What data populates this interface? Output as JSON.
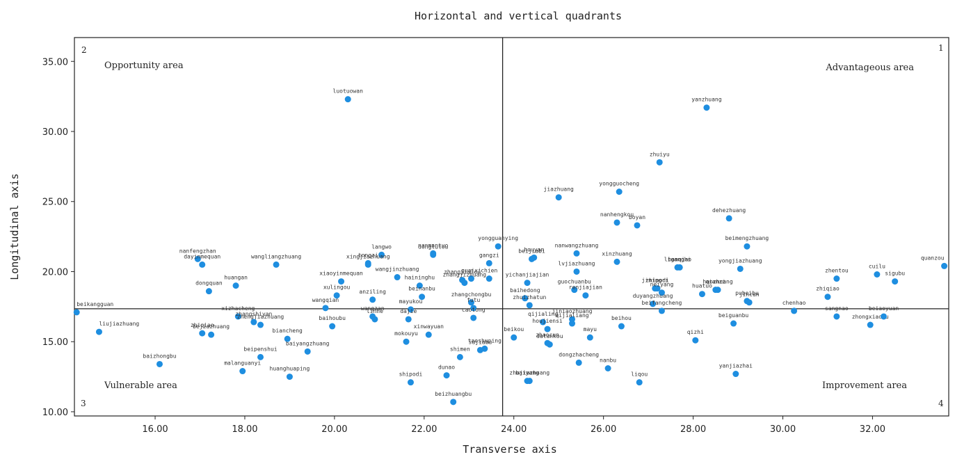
{
  "chart_data": {
    "type": "scatter",
    "title": "Horizontal and vertical quadrants",
    "xlabel": "Transverse axis",
    "ylabel": "Longitudinal axis",
    "xlim": [
      14.2,
      33.7
    ],
    "ylim": [
      9.7,
      36.7
    ],
    "x_ticks": [
      "16.00",
      "18.00",
      "20.00",
      "22.00",
      "24.00",
      "26.00",
      "28.00",
      "30.00",
      "32.00"
    ],
    "y_ticks": [
      "10.00",
      "15.00",
      "20.00",
      "25.00",
      "30.00",
      "35.00"
    ],
    "dividers": {
      "x": 23.75,
      "y": 17.35
    },
    "quadrants": [
      {
        "number": "1",
        "name": "Advantageous area"
      },
      {
        "number": "2",
        "name": "Opportunity area"
      },
      {
        "number": "3",
        "name": "Vulnerable area"
      },
      {
        "number": "4",
        "name": "Improvement area"
      }
    ],
    "color": "#1e8ee0",
    "grid": false,
    "points": [
      {
        "label": "luotuowan",
        "x": 20.3,
        "y": 32.3
      },
      {
        "label": "yanzhuang",
        "x": 28.3,
        "y": 31.7
      },
      {
        "label": "zhuiyu",
        "x": 27.25,
        "y": 27.8
      },
      {
        "label": "jiazhuang",
        "x": 25.0,
        "y": 25.3
      },
      {
        "label": "yongguocheng",
        "x": 26.35,
        "y": 25.7
      },
      {
        "label": "nanhengkou",
        "x": 26.3,
        "y": 23.5
      },
      {
        "label": "boyan",
        "x": 26.75,
        "y": 23.3
      },
      {
        "label": "dehezhuang",
        "x": 28.8,
        "y": 23.8
      },
      {
        "label": "beimengzhuang",
        "x": 29.2,
        "y": 21.8
      },
      {
        "label": "quanzou",
        "x": 33.6,
        "y": 20.4
      },
      {
        "label": "cuilu",
        "x": 32.1,
        "y": 19.8
      },
      {
        "label": "zhentou",
        "x": 31.2,
        "y": 19.5
      },
      {
        "label": "sigubu",
        "x": 32.5,
        "y": 19.3
      },
      {
        "label": "zhiqiao",
        "x": 31.0,
        "y": 18.2
      },
      {
        "label": "yongjiazhuang",
        "x": 29.05,
        "y": 20.2
      },
      {
        "label": "liganghi",
        "x": 27.65,
        "y": 20.3
      },
      {
        "label": "haozhuang",
        "x": 28.55,
        "y": 18.7
      },
      {
        "label": "qianzi",
        "x": 28.5,
        "y": 18.7
      },
      {
        "label": "pubeibu",
        "x": 29.2,
        "y": 17.9
      },
      {
        "label": "jincun",
        "x": 29.25,
        "y": 17.8
      },
      {
        "label": "chenhao",
        "x": 30.25,
        "y": 17.2
      },
      {
        "label": "xinzhuang",
        "x": 26.3,
        "y": 20.7
      },
      {
        "label": "banqiao",
        "x": 27.7,
        "y": 20.3
      },
      {
        "label": "jiningri",
        "x": 27.15,
        "y": 18.8
      },
      {
        "label": "zhipodi",
        "x": 27.2,
        "y": 18.8
      },
      {
        "label": "neiyang",
        "x": 27.3,
        "y": 18.5
      },
      {
        "label": "huatuo",
        "x": 28.2,
        "y": 18.4
      },
      {
        "label": "duyangzhuang",
        "x": 27.1,
        "y": 17.7
      },
      {
        "label": "nanwangzhuang",
        "x": 25.4,
        "y": 21.3
      },
      {
        "label": "houyan",
        "x": 24.45,
        "y": 21.0
      },
      {
        "label": "beijiabi",
        "x": 24.4,
        "y": 20.9
      },
      {
        "label": "lvjiazhuang",
        "x": 25.4,
        "y": 20.0
      },
      {
        "label": "yichanjiajian",
        "x": 24.3,
        "y": 19.2
      },
      {
        "label": "guochuanbu",
        "x": 25.35,
        "y": 18.7
      },
      {
        "label": "renjiajian",
        "x": 25.6,
        "y": 18.3
      },
      {
        "label": "baihedong",
        "x": 24.25,
        "y": 18.1
      },
      {
        "label": "zhuizhatun",
        "x": 24.35,
        "y": 17.6
      },
      {
        "label": "beifangcheng",
        "x": 27.3,
        "y": 17.2
      },
      {
        "label": "beihou",
        "x": 26.4,
        "y": 16.1
      },
      {
        "label": "jiniaozhuang",
        "x": 25.3,
        "y": 16.6
      },
      {
        "label": "qijialing",
        "x": 24.65,
        "y": 16.4
      },
      {
        "label": "qijialiang",
        "x": 25.3,
        "y": 16.3
      },
      {
        "label": "houjiensi",
        "x": 24.75,
        "y": 15.9
      },
      {
        "label": "beikou",
        "x": 24.0,
        "y": 15.3
      },
      {
        "label": "mayu",
        "x": 25.7,
        "y": 15.3
      },
      {
        "label": "zhaocun",
        "x": 24.75,
        "y": 14.9
      },
      {
        "label": "datankou",
        "x": 24.8,
        "y": 14.8
      },
      {
        "label": "dongzhacheng",
        "x": 25.45,
        "y": 13.5
      },
      {
        "label": "baiyang",
        "x": 24.3,
        "y": 12.2
      },
      {
        "label": "zhujiazhuang",
        "x": 24.35,
        "y": 12.2
      },
      {
        "label": "nanbu",
        "x": 26.1,
        "y": 13.1
      },
      {
        "label": "liqou",
        "x": 26.8,
        "y": 12.1
      },
      {
        "label": "qizhi",
        "x": 28.05,
        "y": 15.1
      },
      {
        "label": "beiguanbu",
        "x": 28.9,
        "y": 16.3
      },
      {
        "label": "yanjiazhai",
        "x": 28.95,
        "y": 12.7
      },
      {
        "label": "sangnao",
        "x": 31.2,
        "y": 16.8
      },
      {
        "label": "zhongxiaobu",
        "x": 31.95,
        "y": 16.2
      },
      {
        "label": "beiaoyuan",
        "x": 32.25,
        "y": 16.8
      },
      {
        "label": "yongguanying",
        "x": 23.65,
        "y": 21.8
      },
      {
        "label": "nanmantuo",
        "x": 22.2,
        "y": 21.3
      },
      {
        "label": "donglutou",
        "x": 22.2,
        "y": 21.2
      },
      {
        "label": "gangzi",
        "x": 23.45,
        "y": 20.6
      },
      {
        "label": "guaixi",
        "x": 23.05,
        "y": 19.5
      },
      {
        "label": "chien",
        "x": 23.45,
        "y": 19.5
      },
      {
        "label": "zhangjialou",
        "x": 22.85,
        "y": 19.4
      },
      {
        "label": "zhangjizhuang",
        "x": 22.9,
        "y": 19.2
      },
      {
        "label": "zhangchongbu",
        "x": 23.05,
        "y": 17.8
      },
      {
        "label": "futu",
        "x": 23.1,
        "y": 17.4
      },
      {
        "label": "haininghu",
        "x": 21.9,
        "y": 19.0
      },
      {
        "label": "beinanbu",
        "x": 21.95,
        "y": 18.2
      },
      {
        "label": "langwo",
        "x": 21.05,
        "y": 21.2
      },
      {
        "label": "tongzi",
        "x": 20.75,
        "y": 20.6
      },
      {
        "label": "xingjiazhuang",
        "x": 20.75,
        "y": 20.5
      },
      {
        "label": "wangjinzhuang",
        "x": 21.4,
        "y": 19.6
      },
      {
        "label": "xiaoyinmequan",
        "x": 20.15,
        "y": 19.3
      },
      {
        "label": "xulingou",
        "x": 20.05,
        "y": 18.3
      },
      {
        "label": "wangqian",
        "x": 19.8,
        "y": 17.4
      },
      {
        "label": "anziling",
        "x": 20.85,
        "y": 18.0
      },
      {
        "label": "wangzan",
        "x": 20.85,
        "y": 16.8
      },
      {
        "label": "linhe",
        "x": 20.9,
        "y": 16.6
      },
      {
        "label": "mayukou",
        "x": 21.7,
        "y": 17.3
      },
      {
        "label": "dajie",
        "x": 21.65,
        "y": 16.6
      },
      {
        "label": "xinwayuan",
        "x": 22.1,
        "y": 15.5
      },
      {
        "label": "caotong",
        "x": 23.1,
        "y": 16.7
      },
      {
        "label": "taoshuping",
        "x": 23.35,
        "y": 14.5
      },
      {
        "label": "mokouyu",
        "x": 21.6,
        "y": 15.0
      },
      {
        "label": "shimen",
        "x": 22.8,
        "y": 13.9
      },
      {
        "label": "sujiabu",
        "x": 23.25,
        "y": 14.4
      },
      {
        "label": "dunao",
        "x": 22.5,
        "y": 12.6
      },
      {
        "label": "shipodi",
        "x": 21.7,
        "y": 12.1
      },
      {
        "label": "beizhuangbu",
        "x": 22.65,
        "y": 10.7
      },
      {
        "label": "nanfengzhan",
        "x": 16.95,
        "y": 20.9
      },
      {
        "label": "dayinmequan",
        "x": 17.05,
        "y": 20.5
      },
      {
        "label": "wangliangzhuang",
        "x": 18.7,
        "y": 20.5
      },
      {
        "label": "huangan",
        "x": 17.8,
        "y": 19.0
      },
      {
        "label": "dongquan",
        "x": 17.2,
        "y": 18.6
      },
      {
        "label": "xizhacheng",
        "x": 17.85,
        "y": 16.8
      },
      {
        "label": "zhengjiazhuang",
        "x": 18.35,
        "y": 16.2
      },
      {
        "label": "zhangshiyan",
        "x": 18.2,
        "y": 16.4
      },
      {
        "label": "baihoubu",
        "x": 19.95,
        "y": 16.1
      },
      {
        "label": "bejiazhuang",
        "x": 17.25,
        "y": 15.5
      },
      {
        "label": "biancheng",
        "x": 18.95,
        "y": 15.2
      },
      {
        "label": "beipenshui",
        "x": 18.35,
        "y": 13.9
      },
      {
        "label": "baiyangzhuang",
        "x": 19.4,
        "y": 14.3
      },
      {
        "label": "malanguanyi",
        "x": 17.95,
        "y": 12.9
      },
      {
        "label": "huanghuaping",
        "x": 19.0,
        "y": 12.5
      },
      {
        "label": "beikangguan",
        "x": 14.25,
        "y": 17.1
      },
      {
        "label": "liujiazhuang",
        "x": 14.75,
        "y": 15.7
      },
      {
        "label": "baizhongbu",
        "x": 16.1,
        "y": 13.4
      },
      {
        "label": "zhiqiao",
        "x": 17.05,
        "y": 15.6
      }
    ]
  }
}
